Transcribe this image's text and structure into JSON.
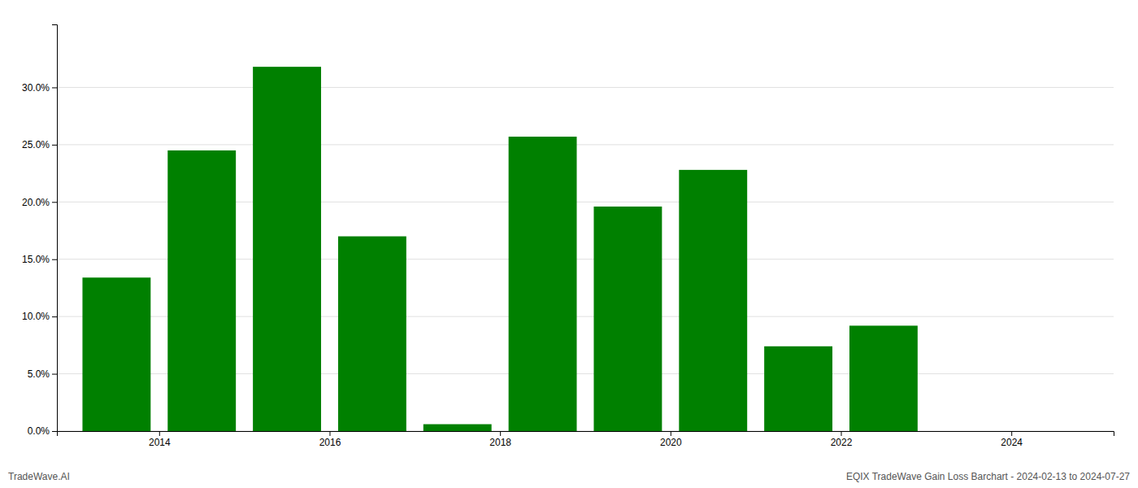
{
  "chart_data": {
    "type": "bar",
    "x": [
      2013.5,
      2014.5,
      2015.5,
      2016.5,
      2017.5,
      2018.5,
      2019.5,
      2020.5,
      2021.5,
      2022.5,
      2023.5
    ],
    "values": [
      0.134,
      0.245,
      0.318,
      0.17,
      0.006,
      0.257,
      0.196,
      0.228,
      0.074,
      0.092,
      0.0
    ],
    "color": "#008000",
    "xlim": [
      2012.8,
      2025.2
    ],
    "xticks": [
      2014,
      2016,
      2018,
      2020,
      2022,
      2024
    ],
    "ylim": [
      0.0,
      0.355
    ],
    "yticks": [
      {
        "value": 0.0,
        "label": "0.0%"
      },
      {
        "value": 0.05,
        "label": "5.0%"
      },
      {
        "value": 0.1,
        "label": "10.0%"
      },
      {
        "value": 0.15,
        "label": "15.0%"
      },
      {
        "value": 0.2,
        "label": "20.0%"
      },
      {
        "value": 0.25,
        "label": "25.0%"
      },
      {
        "value": 0.3,
        "label": "30.0%"
      }
    ],
    "grid": true,
    "annotations": [
      "TradeWave.AI",
      "EQIX TradeWave Gain Loss Barchart - 2024-02-13 to 2024-07-27"
    ]
  }
}
